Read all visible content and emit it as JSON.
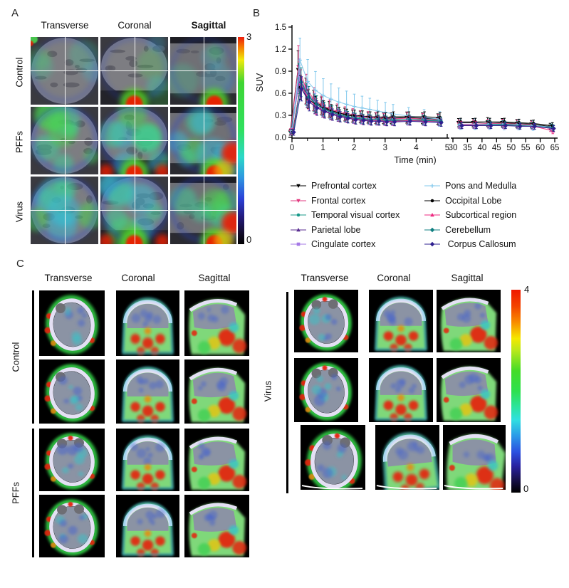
{
  "figure_labels": {
    "a": "A",
    "b": "B",
    "c": "C"
  },
  "panel_a": {
    "column_headers": [
      "Transverse",
      "Coronal",
      "Sagittal"
    ],
    "row_labels": [
      "Control",
      "PFFs",
      "Virus"
    ],
    "colorbar": {
      "max": "3",
      "min": "0",
      "gradient": [
        [
          0,
          "#ee1c0c"
        ],
        [
          5,
          "#f57d00"
        ],
        [
          11,
          "#f0ea0c"
        ],
        [
          22,
          "#3fd532"
        ],
        [
          45,
          "#2fe060"
        ],
        [
          58,
          "#2cd8c8"
        ],
        [
          68,
          "#2e96e0"
        ],
        [
          78,
          "#2b42d8"
        ],
        [
          87,
          "#231a7a"
        ],
        [
          95,
          "#120b28"
        ],
        [
          100,
          "#000000"
        ]
      ]
    }
  },
  "panel_c": {
    "left": {
      "column_headers": [
        "Transverse",
        "Coronal",
        "Sagittal"
      ],
      "group_labels": [
        "Control",
        "PFFs"
      ]
    },
    "right": {
      "column_headers": [
        "Transverse",
        "Coronal",
        "Sagittal"
      ],
      "group_label": "Virus"
    },
    "colorbar": {
      "max": "4",
      "min": "0",
      "gradient": [
        [
          0,
          "#f01800"
        ],
        [
          8,
          "#f34300"
        ],
        [
          16,
          "#f88b00"
        ],
        [
          24,
          "#f5e800"
        ],
        [
          30,
          "#b8e81c"
        ],
        [
          40,
          "#44dc28"
        ],
        [
          50,
          "#2ee04e"
        ],
        [
          58,
          "#2ce4a0"
        ],
        [
          64,
          "#30e0e0"
        ],
        [
          72,
          "#2a9ae8"
        ],
        [
          80,
          "#2b50e0"
        ],
        [
          87,
          "#2820a0"
        ],
        [
          94,
          "#160f46"
        ],
        [
          100,
          "#000000"
        ]
      ]
    }
  },
  "chart_data": {
    "type": "line",
    "title": "",
    "xlabel": "Time (min)",
    "ylabel": "SUV",
    "ylim": [
      0,
      1.5
    ],
    "yticks": [
      0.0,
      0.3,
      0.6,
      0.9,
      1.2,
      1.5
    ],
    "ytick_labels": [
      "0.0",
      "0.3",
      "0.6",
      "0.9",
      "1.2",
      "1.5"
    ],
    "grid": false,
    "legend_position": "below",
    "x_axis_break": {
      "segment1": [
        0,
        5
      ],
      "segment2": [
        30,
        65
      ]
    },
    "xticks_segment1": [
      0,
      1,
      2,
      3,
      4,
      5
    ],
    "xtick_labels_segment1": [
      "0",
      "1",
      "2",
      "3",
      "4",
      "5"
    ],
    "xticks_segment2": [
      30,
      35,
      40,
      45,
      50,
      55,
      60,
      65
    ],
    "xtick_labels_segment2": [
      "30",
      "35",
      "40",
      "45",
      "50",
      "55",
      "60",
      "65"
    ],
    "x_early": [
      0,
      0.25,
      0.5,
      0.75,
      1,
      1.25,
      1.5,
      1.75,
      2,
      2.25,
      2.5,
      2.75,
      3,
      3.25,
      3.75,
      4.25,
      4.75
    ],
    "x_late": [
      32.5,
      37.5,
      42.5,
      47.5,
      52.5,
      57.5,
      64
    ],
    "series": [
      {
        "name": "Prefrontal cortex",
        "color": "#000000",
        "marker": "tri-down",
        "err_frac": 0.28,
        "early": [
          0.07,
          0.92,
          0.63,
          0.5,
          0.43,
          0.38,
          0.34,
          0.31,
          0.29,
          0.28,
          0.27,
          0.26,
          0.26,
          0.26,
          0.27,
          0.26,
          0.25
        ],
        "late": [
          0.2,
          0.2,
          0.21,
          0.2,
          0.19,
          0.18,
          0.15
        ]
      },
      {
        "name": "Frontal cortex",
        "color": "#e23a7f",
        "marker": "tri-down",
        "err_frac": 0.3,
        "early": [
          0.08,
          0.96,
          0.66,
          0.52,
          0.44,
          0.39,
          0.35,
          0.32,
          0.3,
          0.28,
          0.27,
          0.26,
          0.25,
          0.25,
          0.26,
          0.25,
          0.24
        ],
        "late": [
          0.18,
          0.18,
          0.19,
          0.19,
          0.18,
          0.17,
          0.12
        ]
      },
      {
        "name": "Temporal visual cortex",
        "color": "#189a8a",
        "marker": "circle",
        "err_frac": 0.26,
        "early": [
          0.07,
          0.8,
          0.58,
          0.47,
          0.4,
          0.35,
          0.32,
          0.29,
          0.27,
          0.26,
          0.25,
          0.24,
          0.24,
          0.24,
          0.24,
          0.24,
          0.23
        ],
        "late": [
          0.17,
          0.17,
          0.18,
          0.18,
          0.17,
          0.16,
          0.14
        ]
      },
      {
        "name": "Parietal lobe",
        "color": "#5a2e91",
        "marker": "tri-up",
        "err_frac": 0.27,
        "early": [
          0.07,
          0.77,
          0.55,
          0.44,
          0.38,
          0.33,
          0.3,
          0.28,
          0.26,
          0.25,
          0.24,
          0.23,
          0.23,
          0.23,
          0.23,
          0.23,
          0.22
        ],
        "late": [
          0.17,
          0.17,
          0.17,
          0.17,
          0.16,
          0.15,
          0.13
        ]
      },
      {
        "name": "Cingulate cortex",
        "color": "#a578e6",
        "marker": "square",
        "err_frac": 0.27,
        "early": [
          0.08,
          0.84,
          0.6,
          0.47,
          0.4,
          0.35,
          0.31,
          0.28,
          0.26,
          0.25,
          0.24,
          0.23,
          0.22,
          0.22,
          0.23,
          0.22,
          0.21
        ],
        "late": [
          0.16,
          0.16,
          0.17,
          0.17,
          0.16,
          0.15,
          0.13
        ]
      },
      {
        "name": "Pons and Medulla",
        "color": "#82c8ec",
        "marker": "plus",
        "err_frac": 0.4,
        "early": [
          0.09,
          1.05,
          0.76,
          0.64,
          0.57,
          0.52,
          0.48,
          0.45,
          0.42,
          0.4,
          0.38,
          0.36,
          0.34,
          0.32,
          0.29,
          0.27,
          0.25
        ],
        "late": [
          0.18,
          0.18,
          0.18,
          0.17,
          0.17,
          0.16,
          0.14
        ]
      },
      {
        "name": "Occipital Lobe",
        "color": "#000000",
        "marker": "circle",
        "err_frac": 0.24,
        "early": [
          0.07,
          0.68,
          0.52,
          0.45,
          0.4,
          0.36,
          0.33,
          0.31,
          0.3,
          0.29,
          0.28,
          0.28,
          0.27,
          0.28,
          0.28,
          0.28,
          0.27
        ],
        "late": [
          0.21,
          0.21,
          0.21,
          0.21,
          0.2,
          0.19,
          0.16
        ]
      },
      {
        "name": "Subcortical region",
        "color": "#ee2a80",
        "marker": "tri-up",
        "err_frac": 0.26,
        "early": [
          0.08,
          0.73,
          0.52,
          0.42,
          0.36,
          0.32,
          0.29,
          0.27,
          0.25,
          0.24,
          0.23,
          0.23,
          0.22,
          0.22,
          0.23,
          0.22,
          0.22
        ],
        "late": [
          0.17,
          0.17,
          0.17,
          0.16,
          0.16,
          0.15,
          0.09
        ]
      },
      {
        "name": "Cerebellum",
        "color": "#0f7f80",
        "marker": "diamond",
        "err_frac": 0.26,
        "early": [
          0.07,
          0.75,
          0.55,
          0.45,
          0.38,
          0.34,
          0.3,
          0.28,
          0.26,
          0.25,
          0.24,
          0.24,
          0.23,
          0.23,
          0.24,
          0.23,
          0.22
        ],
        "late": [
          0.16,
          0.16,
          0.17,
          0.17,
          0.16,
          0.15,
          0.13
        ]
      },
      {
        "name": " Corpus Callosum",
        "color": "#2e1f8f",
        "marker": "diamond",
        "err_frac": 0.25,
        "early": [
          0.07,
          0.66,
          0.48,
          0.4,
          0.35,
          0.31,
          0.28,
          0.26,
          0.24,
          0.23,
          0.22,
          0.22,
          0.21,
          0.21,
          0.22,
          0.21,
          0.2
        ],
        "late": [
          0.16,
          0.16,
          0.16,
          0.16,
          0.15,
          0.15,
          0.12
        ]
      }
    ]
  }
}
